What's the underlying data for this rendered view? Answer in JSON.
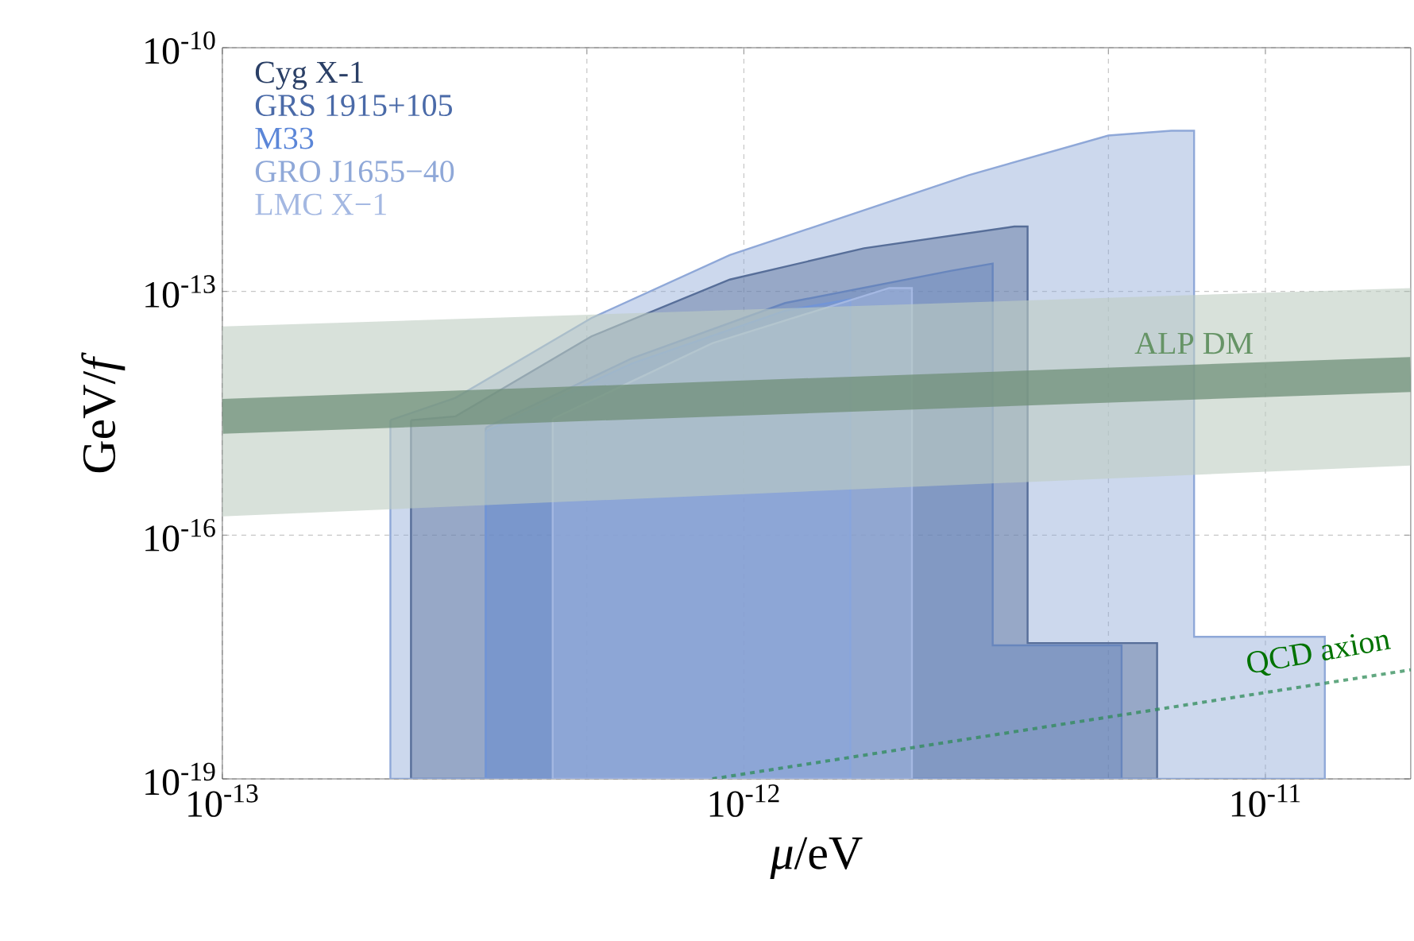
{
  "chart_data": {
    "type": "area",
    "xlabel": "*μ*/eV",
    "ylabel": "GeV/*f*",
    "log": "xy",
    "grid": true,
    "legend": "top left",
    "xlim": [
      1e-13,
      1.9e-11
    ],
    "ylim": [
      1e-19,
      1e-10
    ],
    "xticks": [
      {
        "value": 1e-13,
        "label": "10$^{-13}$"
      },
      {
        "value": 5e-13,
        "label": null
      },
      {
        "value": 1e-12,
        "label": "10$^{-12}$"
      },
      {
        "value": 5e-12,
        "label": null
      },
      {
        "value": 1e-11,
        "label": "10$^{-11}$"
      }
    ],
    "yticks": [
      {
        "value": 1e-19,
        "label": "10$^{-19}$"
      },
      {
        "value": 1e-16,
        "label": "10$^{-16}$"
      },
      {
        "value": 1e-13,
        "label": "10$^{-13}$"
      },
      {
        "value": 1e-10,
        "label": "10$^{-10}$"
      }
    ],
    "series": [
      {
        "name": "Cyg X-1",
        "color": "#2a3f66",
        "x": [
          2.3e-13,
          2.8e-13,
          5.1e-13,
          9.4e-13,
          1.7e-12,
          3.3e-12,
          3.5e-12,
          3.5e-12,
          6.2e-12,
          6.2e-12
        ],
        "values": [
          2.6e-15,
          2.9e-15,
          2.8e-14,
          1.4e-13,
          3.4e-13,
          6.3e-13,
          6.3e-13,
          4.7e-18,
          4.7e-18,
          1e-19
        ]
      },
      {
        "name": "GRS 1915+105",
        "color": "#4a6aa8",
        "x": [
          3.2e-13,
          6.1e-13,
          1.2e-12,
          2.5e-12,
          3e-12,
          3e-12,
          5.3e-12,
          5.3e-12
        ],
        "values": [
          2.1e-15,
          1.5e-14,
          7.2e-14,
          1.8e-13,
          2.2e-13,
          4.4e-18,
          4.4e-18,
          1e-19
        ]
      },
      {
        "name": "M33",
        "color": "#5b86d8",
        "x": [
          3.2e-13,
          6.1e-13,
          1.2e-12,
          1.6e-12
        ],
        "values": [
          1.9e-15,
          1.3e-14,
          5.8e-14,
          8e-14
        ]
      },
      {
        "name": "GRO J1655−40",
        "color": "#8fa8d8",
        "x": [
          2.1e-13,
          2.8e-13,
          5.1e-13,
          9.4e-13,
          2.7e-12,
          5e-12,
          6.6e-12,
          7.3e-12,
          7.3e-12,
          1.3e-11,
          1.3e-11
        ],
        "values": [
          2.6e-15,
          4.9e-15,
          4.7e-14,
          2.8e-13,
          2.7e-12,
          8.3e-12,
          9.5e-12,
          9.5e-12,
          5.6e-18,
          5.6e-18,
          1e-19
        ]
      },
      {
        "name": "LMC X−1",
        "color": "#a4b8e2",
        "x": [
          4.3e-13,
          8.7e-13,
          1.9e-12,
          2.1e-12
        ],
        "values": [
          2.7e-15,
          2.3e-14,
          1.1e-13,
          1.1e-13
        ]
      },
      {
        "type": "line",
        "color": "#6f8f78",
        "x": [
          1e-13,
          1.9e-11
        ],
        "values": [
          2.9e-15,
          9.5e-15
        ],
        "lower": [
          1.7e-16,
          7.2e-16
        ],
        "upper": [
          3.7e-14,
          1.1e-13
        ]
      },
      {
        "type": "line",
        "color": "#2e8b57",
        "line_style": "dashed",
        "x": [
          8.7e-13,
          1.9e-11
        ],
        "values": [
          1e-19,
          2.2e-18
        ]
      }
    ],
    "annotations": [
      {
        "text": "ALP DM",
        "x": 7.3e-12,
        "y": 2.3e-14
      },
      "QCD axion"
    ]
  }
}
